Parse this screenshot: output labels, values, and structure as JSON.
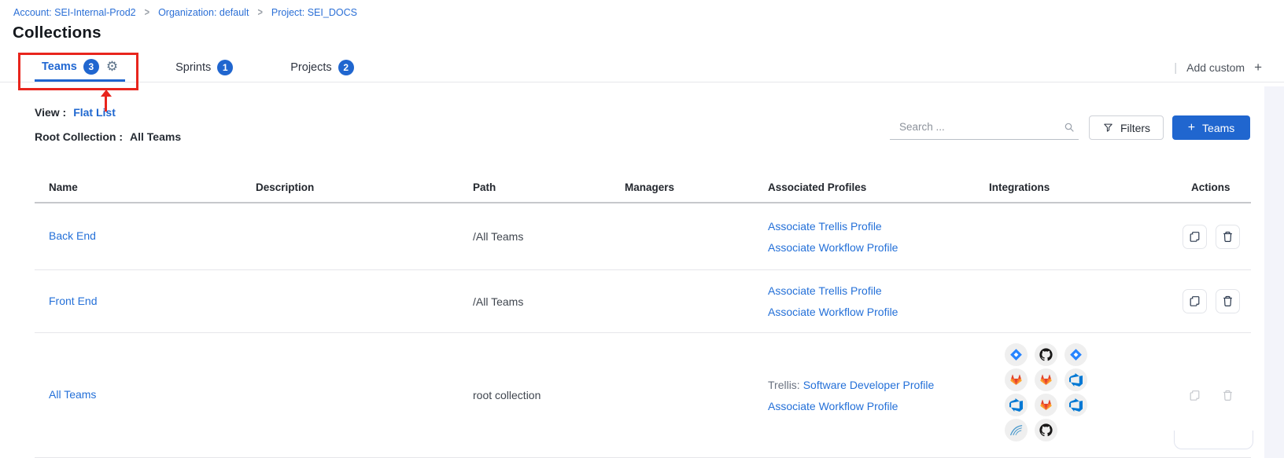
{
  "breadcrumb": {
    "items": [
      "Account: SEI-Internal-Prod2",
      "Organization: default",
      "Project: SEI_DOCS"
    ],
    "separator": ">"
  },
  "page": {
    "title": "Collections"
  },
  "tabs": {
    "items": [
      {
        "label": "Teams",
        "count": "3",
        "active": true
      },
      {
        "label": "Sprints",
        "count": "1",
        "active": false
      },
      {
        "label": "Projects",
        "count": "2",
        "active": false
      }
    ],
    "add_custom_label": "Add custom",
    "add_custom_plus": "+",
    "divider": "|"
  },
  "controls": {
    "view_label": "View :",
    "view_value": "Flat List",
    "root_label": "Root Collection :",
    "root_value": "All Teams",
    "search_placeholder": "Search ...",
    "filters_label": "Filters",
    "add_button_plus": "+",
    "add_button_label": "Teams"
  },
  "icons": {
    "tab_settings": "gear",
    "breadcrumb_separator": "chevron-right",
    "search": "magnifier",
    "filters": "funnel",
    "row_actions": [
      "copy",
      "trash"
    ],
    "integration_types": [
      "jira",
      "github",
      "gitlab",
      "azure-devops",
      "sonarqube"
    ]
  },
  "colors": {
    "accent_blue": "#2066cf",
    "link_blue": "#2470d8",
    "annotation_red": "#e8251d"
  },
  "table": {
    "headers": [
      "Name",
      "Description",
      "Path",
      "Managers",
      "Associated Profiles",
      "Integrations",
      "Actions"
    ],
    "rows": [
      {
        "name": "Back End",
        "description": "",
        "path": "/All Teams",
        "managers": "",
        "profiles": [
          {
            "prefix": "",
            "link": "Associate Trellis Profile"
          },
          {
            "prefix": "",
            "link": "Associate Workflow Profile"
          }
        ],
        "integrations": [],
        "actions_disabled": false
      },
      {
        "name": "Front End",
        "description": "",
        "path": "/All Teams",
        "managers": "",
        "profiles": [
          {
            "prefix": "",
            "link": "Associate Trellis Profile"
          },
          {
            "prefix": "",
            "link": "Associate Workflow Profile"
          }
        ],
        "integrations": [],
        "actions_disabled": false
      },
      {
        "name": "All Teams",
        "description": "",
        "path": "root collection",
        "managers": "",
        "profiles": [
          {
            "prefix": "Trellis:",
            "link": "Software Developer Profile"
          },
          {
            "prefix": "",
            "link": "Associate Workflow Profile"
          }
        ],
        "integrations": [
          "jira",
          "github",
          "jira",
          "gitlab",
          "gitlab",
          "azure-devops",
          "azure-devops",
          "gitlab",
          "azure-devops",
          "sonarqube",
          "github"
        ],
        "actions_disabled": true
      }
    ]
  }
}
